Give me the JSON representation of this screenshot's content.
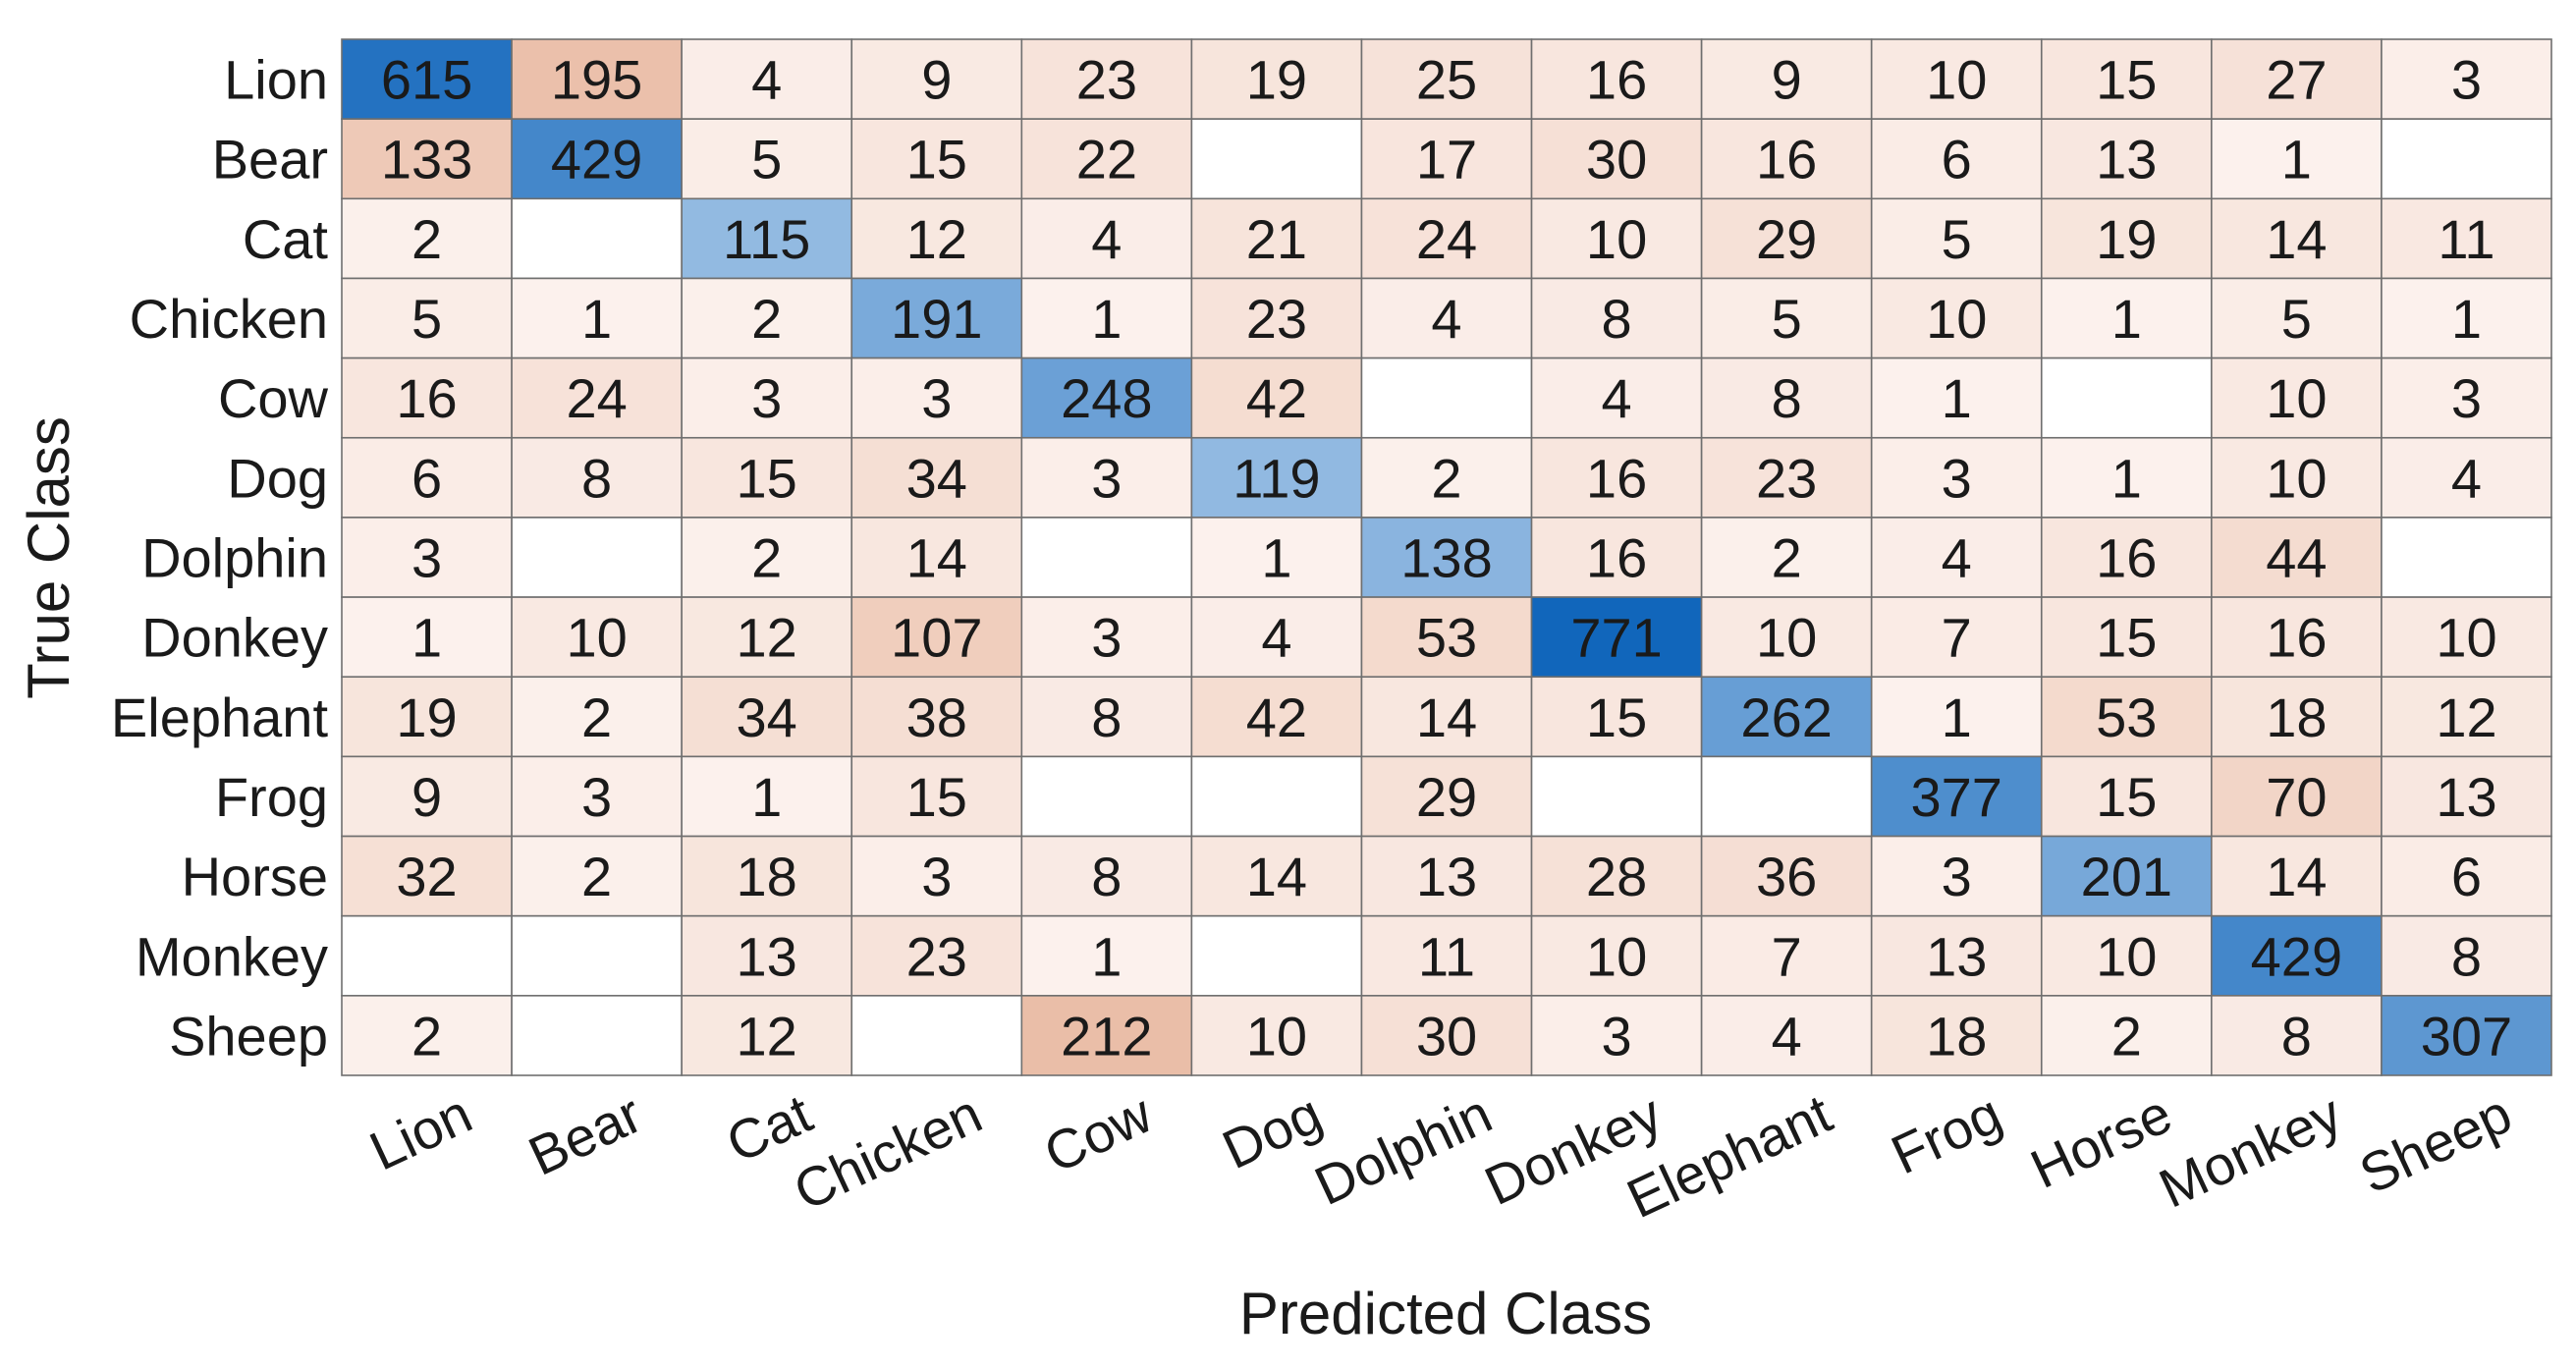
{
  "chart_data": {
    "type": "heatmap",
    "title": "",
    "xlabel": "Predicted Class",
    "ylabel": "True Class",
    "x_categories": [
      "Lion",
      "Bear",
      "Cat",
      "Chicken",
      "Cow",
      "Dog",
      "Dolphin",
      "Donkey",
      "Elephant",
      "Frog",
      "Horse",
      "Monkey",
      "Sheep"
    ],
    "y_categories": [
      "Lion",
      "Bear",
      "Cat",
      "Chicken",
      "Cow",
      "Dog",
      "Dolphin",
      "Donkey",
      "Elephant",
      "Frog",
      "Horse",
      "Monkey",
      "Sheep"
    ],
    "values": [
      [
        615,
        195,
        4,
        9,
        23,
        19,
        25,
        16,
        9,
        10,
        15,
        27,
        3
      ],
      [
        133,
        429,
        5,
        15,
        22,
        null,
        17,
        30,
        16,
        6,
        13,
        1,
        null
      ],
      [
        2,
        null,
        115,
        12,
        4,
        21,
        24,
        10,
        29,
        5,
        19,
        14,
        11
      ],
      [
        5,
        1,
        2,
        191,
        1,
        23,
        4,
        8,
        5,
        10,
        1,
        5,
        1
      ],
      [
        16,
        24,
        3,
        3,
        248,
        42,
        null,
        4,
        8,
        1,
        null,
        10,
        3
      ],
      [
        6,
        8,
        15,
        34,
        3,
        119,
        2,
        16,
        23,
        3,
        1,
        10,
        4
      ],
      [
        3,
        null,
        2,
        14,
        null,
        1,
        138,
        16,
        2,
        4,
        16,
        44,
        null
      ],
      [
        1,
        10,
        12,
        107,
        3,
        4,
        53,
        771,
        10,
        7,
        15,
        16,
        10
      ],
      [
        19,
        2,
        34,
        38,
        8,
        42,
        14,
        15,
        262,
        1,
        53,
        18,
        12
      ],
      [
        9,
        3,
        1,
        15,
        null,
        null,
        29,
        null,
        null,
        377,
        15,
        70,
        13
      ],
      [
        32,
        2,
        18,
        3,
        8,
        14,
        13,
        28,
        36,
        3,
        201,
        14,
        6
      ],
      [
        null,
        null,
        13,
        23,
        1,
        null,
        11,
        10,
        7,
        13,
        10,
        429,
        8
      ],
      [
        2,
        null,
        12,
        null,
        212,
        10,
        30,
        3,
        4,
        18,
        2,
        8,
        307
      ]
    ],
    "colors": {
      "diagonal_low": "#e6f0fa",
      "diagonal_high": "#1166bb",
      "offdiag_low": "#fdf5f2",
      "offdiag_high": "#eabea8",
      "empty": "#ffffff",
      "grid": "#6f6f6f",
      "text_dark": "#1a1a1a",
      "text_light": "#ffffff"
    }
  }
}
